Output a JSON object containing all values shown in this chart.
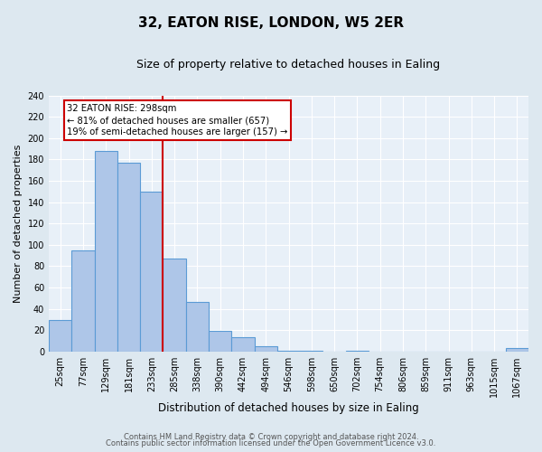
{
  "title": "32, EATON RISE, LONDON, W5 2ER",
  "subtitle": "Size of property relative to detached houses in Ealing",
  "xlabel": "Distribution of detached houses by size in Ealing",
  "ylabel": "Number of detached properties",
  "bar_labels": [
    "25sqm",
    "77sqm",
    "129sqm",
    "181sqm",
    "233sqm",
    "285sqm",
    "338sqm",
    "390sqm",
    "442sqm",
    "494sqm",
    "546sqm",
    "598sqm",
    "650sqm",
    "702sqm",
    "754sqm",
    "806sqm",
    "859sqm",
    "911sqm",
    "963sqm",
    "1015sqm",
    "1067sqm"
  ],
  "bar_heights": [
    29,
    95,
    188,
    177,
    150,
    87,
    46,
    19,
    13,
    5,
    1,
    1,
    0,
    1,
    0,
    0,
    0,
    0,
    0,
    0,
    3
  ],
  "bar_color": "#aec6e8",
  "bar_edge_color": "#5b9bd5",
  "vline_color": "#cc0000",
  "vline_index": 5,
  "annotation_title": "32 EATON RISE: 298sqm",
  "annotation_line1": "← 81% of detached houses are smaller (657)",
  "annotation_line2": "19% of semi-detached houses are larger (157) →",
  "annotation_box_color": "#ffffff",
  "annotation_box_edge": "#cc0000",
  "ylim": [
    0,
    240
  ],
  "yticks": [
    0,
    20,
    40,
    60,
    80,
    100,
    120,
    140,
    160,
    180,
    200,
    220,
    240
  ],
  "footer1": "Contains HM Land Registry data © Crown copyright and database right 2024.",
  "footer2": "Contains public sector information licensed under the Open Government Licence v3.0.",
  "bg_color": "#dde8f0",
  "plot_bg": "#e8f0f8",
  "grid_color": "#ffffff",
  "title_fontsize": 11,
  "subtitle_fontsize": 9,
  "ylabel_fontsize": 8,
  "xlabel_fontsize": 8.5,
  "tick_fontsize": 7,
  "footer_fontsize": 6
}
